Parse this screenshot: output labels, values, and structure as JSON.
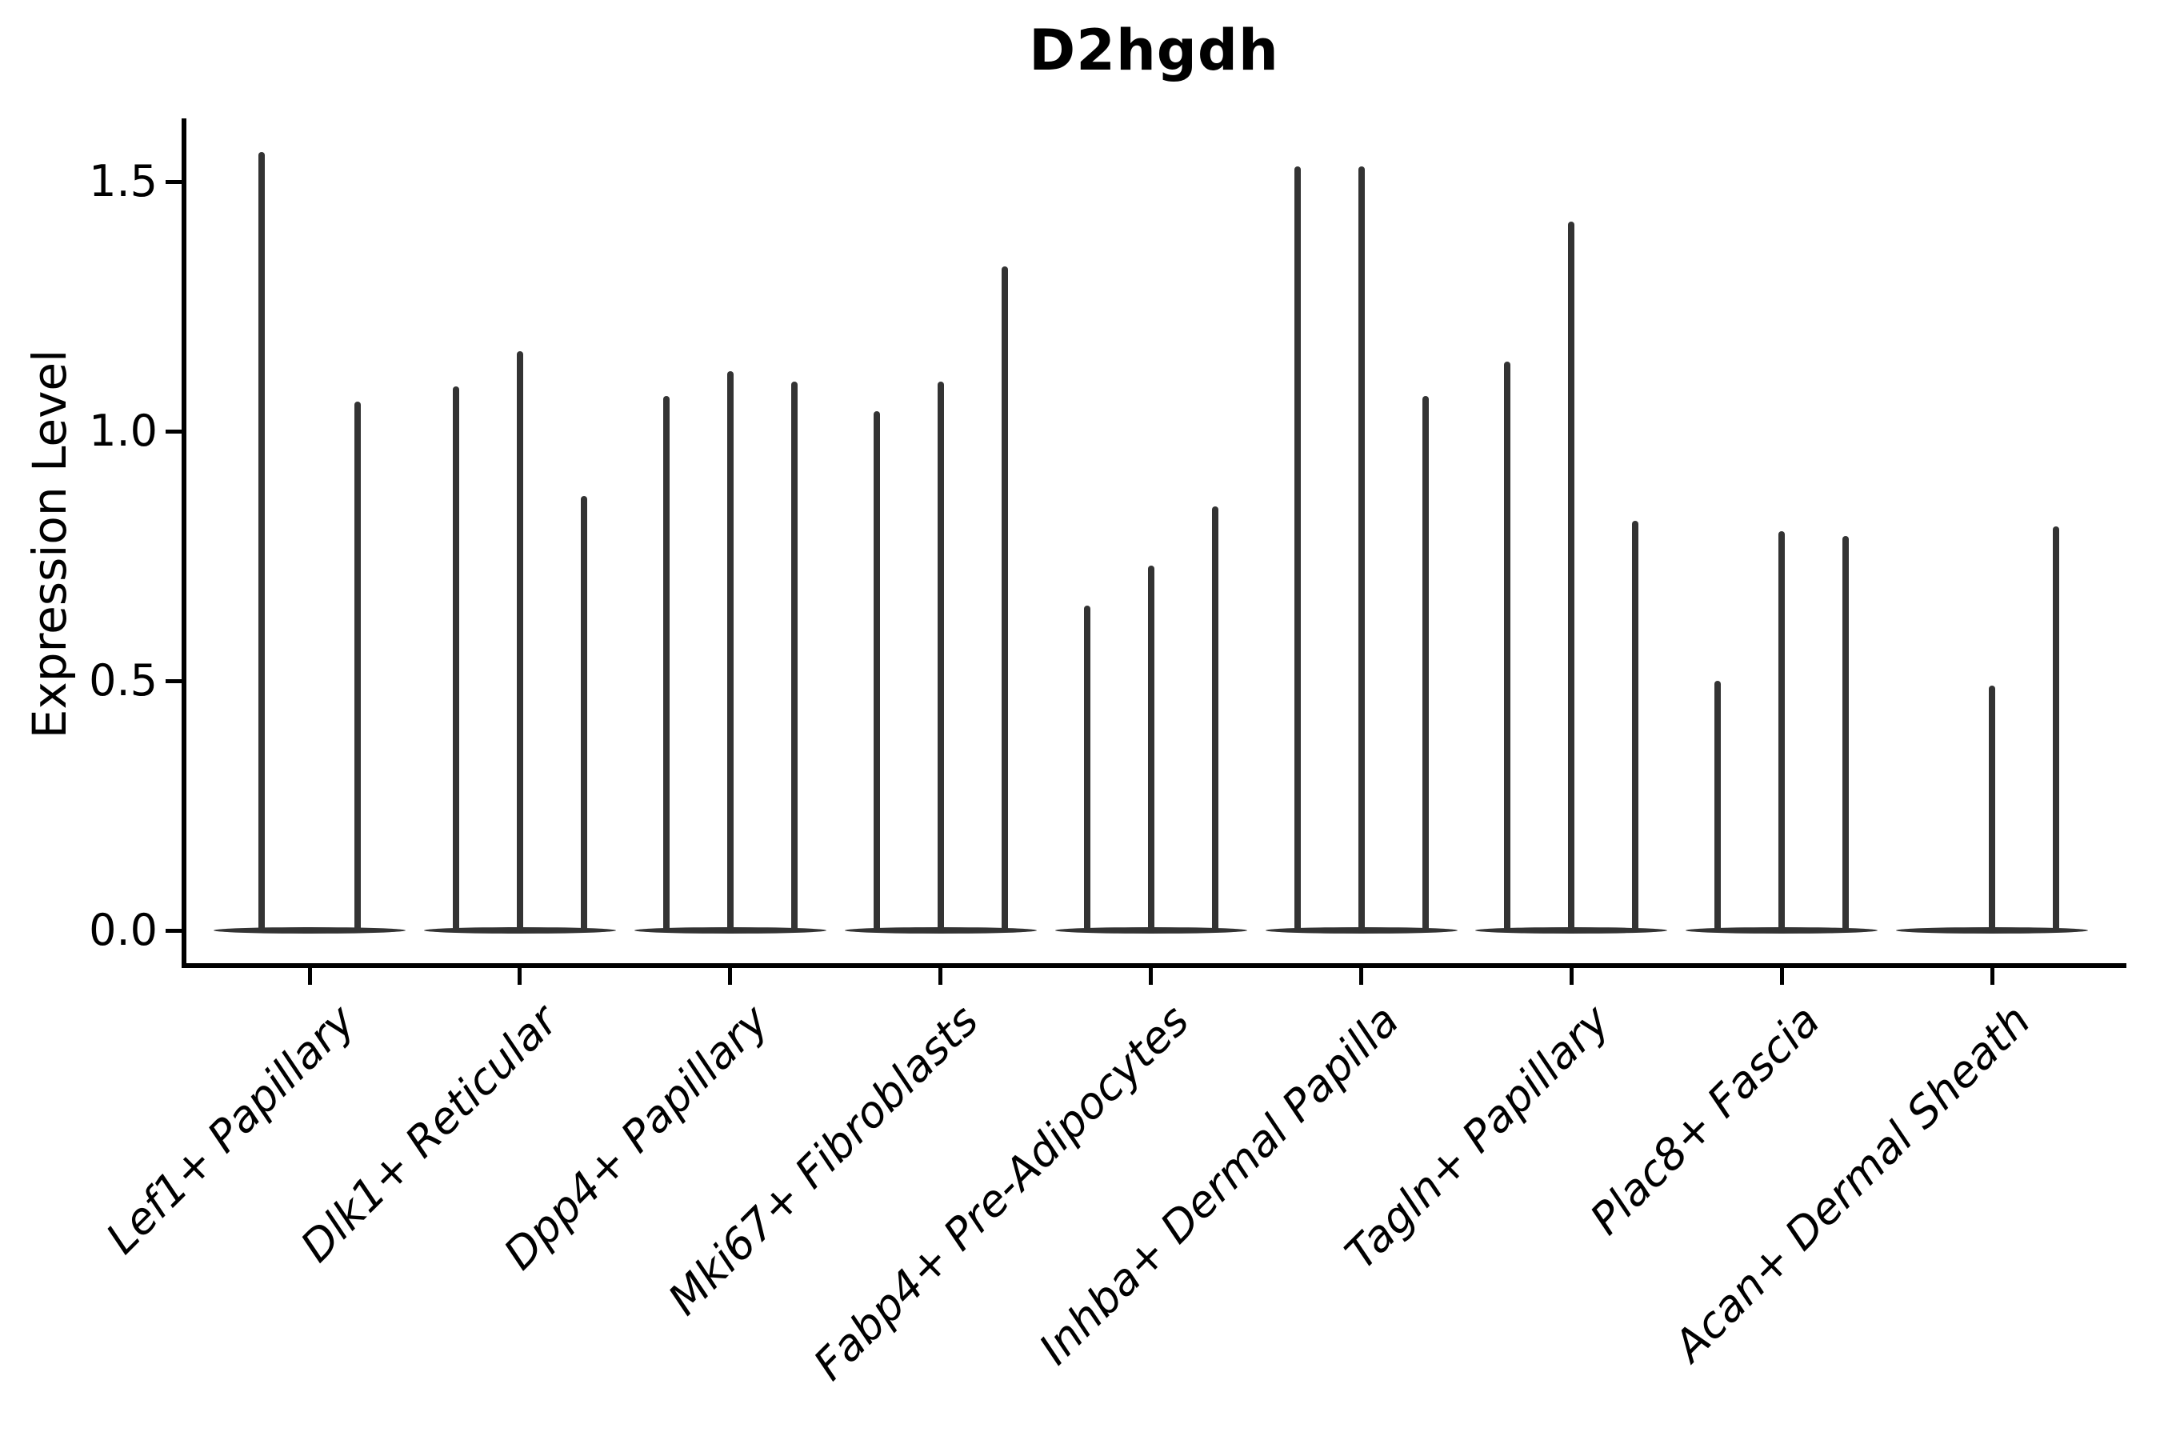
{
  "title": "D2hgdh",
  "axes": {
    "ylabel": "Expression Level",
    "ytick_labels": [
      "0.0",
      "0.5",
      "1.0",
      "1.5"
    ]
  },
  "chart_data": {
    "type": "violin",
    "title": "D2hgdh",
    "xlabel": "",
    "ylabel": "Expression Level",
    "ylim": [
      -0.07,
      1.63
    ],
    "yticks": [
      0.0,
      0.5,
      1.0,
      1.5
    ],
    "grid": false,
    "legend": "none",
    "style_note": "Very thin spike-like violins, dark gray (#333), flat lens-shaped base at y=0 per category; only left and bottom black spines; x labels italic, rotated 45deg; title bold.",
    "categories": [
      "Lef1+ Papillary",
      "Dlk1+ Reticular",
      "Dpp4+ Papillary",
      "Mki67+ Fibroblasts",
      "Fabp4+ Pre-Adipocytes",
      "Inhba+ Dermal Papilla",
      "Tagln+ Papillary",
      "Plac8+ Fascia",
      "Acan+ Dermal Sheath"
    ],
    "series": [
      {
        "category": "Lef1+ Papillary",
        "violin_max_values": [
          1.56,
          1.06
        ]
      },
      {
        "category": "Dlk1+ Reticular",
        "violin_max_values": [
          1.09,
          1.16,
          0.87
        ]
      },
      {
        "category": "Dpp4+ Papillary",
        "violin_max_values": [
          1.07,
          1.12,
          1.1
        ]
      },
      {
        "category": "Mki67+ Fibroblasts",
        "violin_max_values": [
          1.04,
          1.1,
          1.33
        ]
      },
      {
        "category": "Fabp4+ Pre-Adipocytes",
        "violin_max_values": [
          0.65,
          0.73,
          0.85
        ]
      },
      {
        "category": "Inhba+ Dermal Papilla",
        "violin_max_values": [
          1.53,
          1.53,
          1.07
        ]
      },
      {
        "category": "Tagln+ Papillary",
        "violin_max_values": [
          1.14,
          1.42,
          0.82
        ]
      },
      {
        "category": "Plac8+ Fascia",
        "violin_max_values": [
          0.5,
          0.8,
          0.79
        ]
      },
      {
        "category": "Acan+ Dermal Sheath",
        "violin_max_values": [
          0,
          0.49,
          0.81
        ]
      }
    ],
    "colors": {
      "violin": "#333333",
      "axis": "#000000",
      "text": "#000000",
      "background": "#ffffff"
    }
  }
}
